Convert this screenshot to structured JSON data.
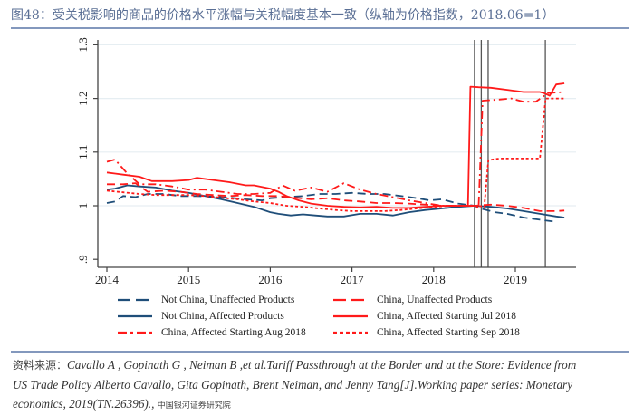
{
  "figure": {
    "title": "图48：受关税影响的商品的价格水平涨幅与关税幅度基本一致（纵轴为价格指数，2018.06=1）"
  },
  "source": {
    "label": "资料来源：",
    "line1": "Cavallo A , Gopinath G , Neiman B ,et al.Tariff Passthrough at the Border and at the Store: Evidence from",
    "line2": "US Trade Policy Alberto Cavallo, Gita Gopinath, Brent Neiman, and Jenny Tang[J].Working paper series: Monetary",
    "line3": "economics, 2019(TN.26396).,",
    "org": "中国银河证券研究院"
  },
  "chart_data": {
    "type": "line",
    "title": "",
    "xlabel": "",
    "ylabel": "",
    "xlim": [
      2013.95,
      2019.65
    ],
    "ylim": [
      0.89,
      1.31
    ],
    "x_ticks": [
      2014,
      2015,
      2016,
      2017,
      2018,
      2019
    ],
    "x_tick_labels": [
      "2014",
      "2015",
      "2016",
      "2017",
      "2018",
      "2019"
    ],
    "y_ticks": [
      0.9,
      1.0,
      1.1,
      1.2,
      1.3
    ],
    "y_tick_labels": [
      ".9",
      "1",
      "1.1",
      "1.2",
      "1.3"
    ],
    "grid": "horizontal",
    "legend_position": "bottom",
    "vertical_lines": [
      2018.5,
      2018.583,
      2018.667,
      2019.367
    ],
    "series": [
      {
        "name": "Not China, Unaffected Products",
        "color": "#1f4e79",
        "style": "dashed",
        "x": [
          2014.0,
          2014.1,
          2014.2,
          2014.35,
          2014.5,
          2014.7,
          2014.9,
          2015.1,
          2015.3,
          2015.5,
          2015.7,
          2015.9,
          2016.0,
          2016.2,
          2016.4,
          2016.6,
          2016.8,
          2017.0,
          2017.2,
          2017.4,
          2017.6,
          2017.8,
          2017.95,
          2018.1,
          2018.3,
          2018.5,
          2018.6,
          2018.75,
          2018.9,
          2019.1,
          2019.3,
          2019.5
        ],
        "y": [
          1.005,
          1.008,
          1.018,
          1.016,
          1.022,
          1.022,
          1.018,
          1.018,
          1.017,
          1.015,
          1.012,
          1.01,
          1.014,
          1.016,
          1.018,
          1.022,
          1.022,
          1.024,
          1.022,
          1.022,
          1.018,
          1.014,
          1.01,
          1.012,
          1.004,
          1.0,
          0.994,
          0.988,
          0.985,
          0.978,
          0.974,
          0.97
        ]
      },
      {
        "name": "Not China, Affected Products",
        "color": "#1f4e79",
        "style": "solid",
        "x": [
          2014.0,
          2014.1,
          2014.25,
          2014.4,
          2014.6,
          2014.8,
          2015.0,
          2015.2,
          2015.4,
          2015.6,
          2015.8,
          2016.0,
          2016.1,
          2016.25,
          2016.4,
          2016.55,
          2016.7,
          2016.9,
          2017.1,
          2017.3,
          2017.5,
          2017.7,
          2017.9,
          2018.1,
          2018.3,
          2018.5,
          2018.7,
          2018.9,
          2019.1,
          2019.3,
          2019.5,
          2019.6
        ],
        "y": [
          1.03,
          1.032,
          1.038,
          1.036,
          1.034,
          1.028,
          1.024,
          1.018,
          1.012,
          1.005,
          0.998,
          0.988,
          0.985,
          0.982,
          0.984,
          0.982,
          0.98,
          0.98,
          0.985,
          0.985,
          0.982,
          0.988,
          0.992,
          0.995,
          0.998,
          1.0,
          0.998,
          0.995,
          0.99,
          0.985,
          0.98,
          0.978
        ]
      },
      {
        "name": "China, Unaffected Products",
        "color": "#ff1a1a",
        "style": "dashed",
        "x": [
          2014.0,
          2014.2,
          2014.35,
          2014.5,
          2014.7,
          2014.9,
          2015.1,
          2015.3,
          2015.5,
          2015.7,
          2015.9,
          2016.1,
          2016.3,
          2016.5,
          2016.7,
          2016.9,
          2017.1,
          2017.3,
          2017.5,
          2017.7,
          2017.9,
          2018.1,
          2018.3,
          2018.5,
          2018.7,
          2018.9,
          2019.1,
          2019.3,
          2019.5,
          2019.6
        ],
        "y": [
          1.04,
          1.04,
          1.042,
          1.026,
          1.028,
          1.026,
          1.022,
          1.02,
          1.018,
          1.02,
          1.018,
          1.018,
          1.015,
          1.012,
          1.014,
          1.01,
          1.008,
          1.005,
          1.005,
          1.004,
          1.002,
          1.0,
          1.0,
          1.0,
          1.002,
          1.0,
          0.996,
          0.99,
          0.99,
          0.991
        ]
      },
      {
        "name": "China, Affected Starting Jul 2018",
        "color": "#ff1a1a",
        "style": "solid",
        "x": [
          2014.0,
          2014.2,
          2014.4,
          2014.55,
          2014.8,
          2015.0,
          2015.1,
          2015.3,
          2015.5,
          2015.7,
          2015.8,
          2016.0,
          2016.1,
          2016.2,
          2016.35,
          2016.5,
          2016.7,
          2016.9,
          2017.1,
          2017.3,
          2017.5,
          2017.7,
          2017.9,
          2018.1,
          2018.3,
          2018.42,
          2018.45,
          2018.55,
          2018.7,
          2018.9,
          2019.1,
          2019.3,
          2019.35,
          2019.42,
          2019.5,
          2019.6
        ],
        "y": [
          1.062,
          1.058,
          1.054,
          1.046,
          1.046,
          1.048,
          1.052,
          1.048,
          1.044,
          1.038,
          1.038,
          1.032,
          1.026,
          1.018,
          1.01,
          1.004,
          1.0,
          0.998,
          0.997,
          0.998,
          0.996,
          0.996,
          0.998,
          1.0,
          1.0,
          1.0,
          1.222,
          1.221,
          1.22,
          1.216,
          1.212,
          1.212,
          1.21,
          1.205,
          1.226,
          1.228
        ]
      },
      {
        "name": "China, Affected Starting Aug 2018",
        "color": "#ff1a1a",
        "style": "dashdot",
        "x": [
          2014.0,
          2014.1,
          2014.25,
          2014.4,
          2014.6,
          2014.8,
          2015.0,
          2015.2,
          2015.4,
          2015.6,
          2015.8,
          2016.0,
          2016.15,
          2016.3,
          2016.5,
          2016.7,
          2016.9,
          2017.1,
          2017.3,
          2017.5,
          2017.7,
          2017.9,
          2018.1,
          2018.3,
          2018.5,
          2018.55,
          2018.6,
          2018.8,
          2018.95,
          2019.1,
          2019.25,
          2019.4,
          2019.6
        ],
        "y": [
          1.082,
          1.086,
          1.06,
          1.04,
          1.04,
          1.036,
          1.03,
          1.03,
          1.026,
          1.022,
          1.022,
          1.024,
          1.038,
          1.028,
          1.034,
          1.026,
          1.042,
          1.03,
          1.022,
          1.016,
          1.01,
          1.005,
          1.0,
          1.0,
          1.0,
          0.996,
          1.196,
          1.198,
          1.2,
          1.194,
          1.194,
          1.21,
          1.212
        ]
      },
      {
        "name": "China, Affected Starting Sep 2018",
        "color": "#ff1a1a",
        "style": "dotted",
        "x": [
          2014.0,
          2014.2,
          2014.4,
          2014.6,
          2014.8,
          2015.0,
          2015.2,
          2015.4,
          2015.6,
          2015.8,
          2016.0,
          2016.2,
          2016.4,
          2016.6,
          2016.8,
          2017.0,
          2017.2,
          2017.4,
          2017.6,
          2017.8,
          2018.0,
          2018.2,
          2018.4,
          2018.55,
          2018.62,
          2018.67,
          2018.8,
          2019.0,
          2019.2,
          2019.3,
          2019.37,
          2019.45,
          2019.6
        ],
        "y": [
          1.028,
          1.025,
          1.022,
          1.02,
          1.02,
          1.02,
          1.018,
          1.015,
          1.012,
          1.008,
          1.005,
          1.0,
          0.998,
          0.995,
          0.992,
          0.99,
          0.99,
          0.99,
          0.992,
          0.995,
          0.998,
          1.0,
          1.0,
          1.0,
          0.998,
          1.085,
          1.088,
          1.088,
          1.088,
          1.088,
          1.2,
          1.2,
          1.2
        ]
      }
    ]
  }
}
